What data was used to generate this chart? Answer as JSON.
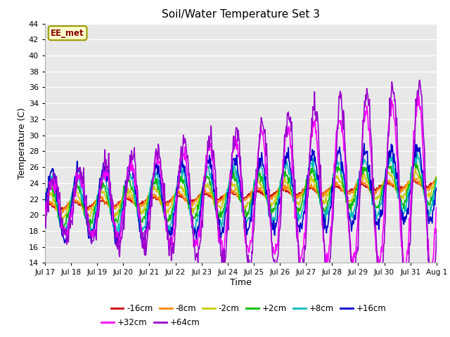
{
  "title": "Soil/Water Temperature Set 3",
  "xlabel": "Time",
  "ylabel": "Temperature (C)",
  "ylim": [
    14,
    44
  ],
  "yticks": [
    14,
    16,
    18,
    20,
    22,
    24,
    26,
    28,
    30,
    32,
    34,
    36,
    38,
    40,
    42,
    44
  ],
  "annotation": "EE_met",
  "series_labels": [
    "-16cm",
    "-8cm",
    "-2cm",
    "+2cm",
    "+8cm",
    "+16cm",
    "+32cm",
    "+64cm"
  ],
  "series_colors": [
    "#cc0000",
    "#ff8800",
    "#cccc00",
    "#00bb00",
    "#00bbbb",
    "#0000cc",
    "#ff00ff",
    "#9900cc"
  ],
  "series_linewidths": [
    1.2,
    1.2,
    1.2,
    1.2,
    1.2,
    1.2,
    1.2,
    1.2
  ],
  "background_color": "#ffffff",
  "plot_bg_color": "#e8e8e8",
  "grid_color": "#ffffff",
  "num_points": 720,
  "x_start": 0,
  "x_end": 15.0,
  "xtick_positions": [
    0,
    1,
    2,
    3,
    4,
    5,
    6,
    7,
    8,
    9,
    10,
    11,
    12,
    13,
    14,
    15
  ],
  "xtick_labels": [
    "Jul 17",
    "Jul 18",
    "Jul 19",
    "Jul 20",
    "Jul 21",
    "Jul 22",
    "Jul 23",
    "Jul 24",
    "Jul 25",
    "Jul 26",
    "Jul 27",
    "Jul 28",
    "Jul 29",
    "Jul 30",
    "Jul 31",
    "Aug 1"
  ]
}
